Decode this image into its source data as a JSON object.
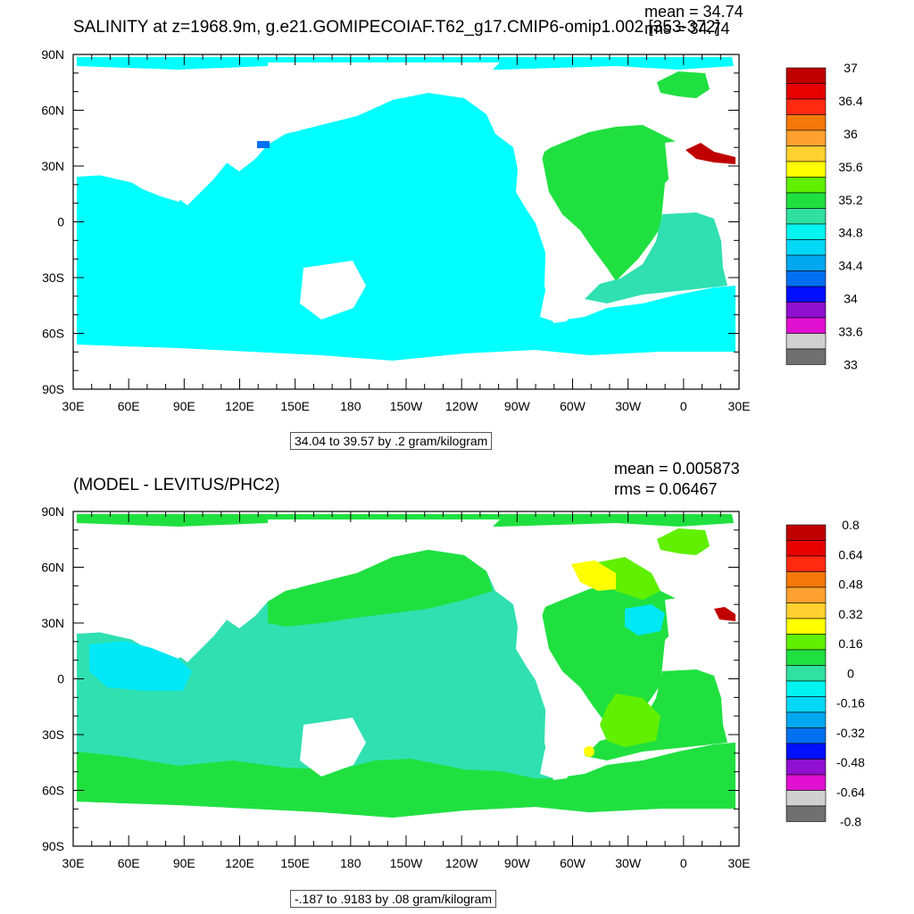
{
  "top": {
    "title": "SALINITY at z=1968.9m, g.e21.GOMIPECOIAF.T62_g17.CMIP6-omip1.002 [353-372]",
    "mean": "mean = 34.74",
    "rms": "rms = 34.74",
    "range": "34.04 to 39.57 by .2 gram/kilogram",
    "colorbar": {
      "labels": [
        "37",
        "36.4",
        "36",
        "35.6",
        "35.2",
        "34.8",
        "34.4",
        "34",
        "33.6",
        "33"
      ],
      "colors": [
        "#c00000",
        "#e60000",
        "#ff2a10",
        "#f5780a",
        "#ffa030",
        "#ffd030",
        "#ffff00",
        "#60f000",
        "#20e040",
        "#30e0a0",
        "#00f5f0",
        "#00d8f5",
        "#00a8f0",
        "#0070f0",
        "#0010ff",
        "#9010d0",
        "#e010d0",
        "#d0d0d0",
        "#707070"
      ]
    }
  },
  "bottom": {
    "title": "(MODEL - LEVITUS/PHC2)",
    "mean": "mean = 0.005873",
    "rms": "rms = 0.06467",
    "range": "-.187 to .9183 by .08 gram/kilogram",
    "colorbar": {
      "labels": [
        "0.8",
        "0.64",
        "0.48",
        "0.32",
        "0.16",
        "0",
        "-0.16",
        "-0.32",
        "-0.48",
        "-0.64",
        "-0.8"
      ],
      "colors": [
        "#c00000",
        "#e60000",
        "#ff2a10",
        "#f5780a",
        "#ffa030",
        "#ffd030",
        "#ffff00",
        "#60f000",
        "#20e040",
        "#30e0a0",
        "#00f5f0",
        "#00d8f5",
        "#00a8f0",
        "#0070f0",
        "#0010ff",
        "#9010d0",
        "#e010d0",
        "#d0d0d0",
        "#707070"
      ]
    }
  },
  "axes": {
    "lat_labels": [
      "90N",
      "60N",
      "30N",
      "0",
      "30S",
      "60S",
      "90S"
    ],
    "lon_labels": [
      "30E",
      "60E",
      "90E",
      "120E",
      "150E",
      "180",
      "150W",
      "120W",
      "90W",
      "60W",
      "30W",
      "0",
      "30E"
    ]
  },
  "field_colors": {
    "salinity_pacific_indian": "#00ffff",
    "salinity_atlantic": "#20e040",
    "salinity_south_atlantic": "#30e0b0",
    "salinity_med": "#c00000",
    "anomaly_green": "#20e040",
    "anomaly_teal": "#30e0b0",
    "anomaly_cyan": "#00e8f5",
    "anomaly_lime": "#60f000",
    "anomaly_yellow": "#ffff00"
  }
}
